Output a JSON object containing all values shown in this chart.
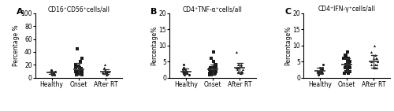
{
  "panels": [
    {
      "label": "A",
      "title": "CD16⁺CD56⁺cells/all",
      "ylabel": "Percentage %",
      "ylim": [
        0,
        100
      ],
      "yticks": [
        0,
        20,
        40,
        60,
        80,
        100
      ],
      "groups": [
        "Healthy",
        "Onset",
        "After RT"
      ],
      "markers": [
        "o",
        "s",
        "^"
      ],
      "data": [
        [
          5,
          8,
          10,
          7,
          9,
          6,
          8,
          5,
          10,
          12,
          7,
          6
        ],
        [
          8,
          5,
          10,
          15,
          20,
          12,
          8,
          6,
          10,
          14,
          18,
          25,
          9,
          7,
          5,
          30,
          10,
          8,
          45,
          12,
          6,
          8,
          10,
          15
        ],
        [
          5,
          8,
          10,
          6,
          12,
          7,
          9,
          8,
          6,
          10,
          15,
          7,
          8,
          20
        ]
      ]
    },
    {
      "label": "B",
      "title": "CD4⁺TNF-α⁺cells/all",
      "ylabel": "Percentage%",
      "ylim": [
        0,
        20
      ],
      "yticks": [
        0,
        5,
        10,
        15,
        20
      ],
      "groups": [
        "Healthy",
        "Onset",
        "After RT"
      ],
      "markers": [
        "o",
        "s",
        "^"
      ],
      "data": [
        [
          1.5,
          2,
          1,
          2.5,
          3,
          1.5,
          2,
          1,
          2.5,
          4,
          1.5,
          2,
          1.5
        ],
        [
          1,
          2,
          3,
          1.5,
          2.5,
          4,
          1,
          2,
          1.5,
          3,
          5,
          2,
          1,
          1.5,
          2,
          6,
          3,
          1.5,
          2,
          1,
          2.5,
          8,
          1,
          2,
          1.5,
          3,
          4,
          1.5
        ],
        [
          1.5,
          3,
          2,
          4,
          2.5,
          1.5,
          3,
          2,
          8,
          3.5,
          2,
          4,
          2.5,
          3
        ]
      ]
    },
    {
      "label": "C",
      "title": "CD4⁺IFN-γ⁺cells/all",
      "ylabel": "Percentage%",
      "ylim": [
        0,
        20
      ],
      "yticks": [
        0,
        5,
        10,
        15,
        20
      ],
      "groups": [
        "Healthy",
        "Onset",
        "After RT"
      ],
      "markers": [
        "o",
        "s",
        "^"
      ],
      "data": [
        [
          2,
          1.5,
          3,
          2,
          4,
          1.5,
          2.5,
          2,
          1,
          3,
          2,
          1.5,
          2.5
        ],
        [
          2,
          4,
          6,
          3,
          5,
          8,
          2,
          4,
          6,
          3,
          5,
          7,
          2,
          4,
          1.5,
          3,
          5,
          8,
          2.5,
          4,
          6,
          3,
          5,
          7,
          2,
          3,
          4,
          1.5,
          6,
          2
        ],
        [
          3,
          5,
          4,
          6,
          8,
          3,
          5,
          4,
          6,
          10,
          3,
          5,
          4,
          6,
          7,
          3
        ]
      ]
    }
  ],
  "dot_color": "#1a1a1a",
  "dot_size": 5,
  "error_color": "#333333",
  "error_lw": 0.9,
  "mean_lw": 1.2,
  "mean_halfwidth": 0.2,
  "cap_halfwidth": 0.1,
  "font_size": 5.5,
  "label_font_size": 8,
  "title_font_size": 5.5,
  "tick_font_size": 5.5,
  "bg_color": "#ffffff",
  "jitter": 0.13,
  "group_positions": [
    1,
    2,
    3
  ],
  "xlim": [
    0.4,
    3.6
  ]
}
